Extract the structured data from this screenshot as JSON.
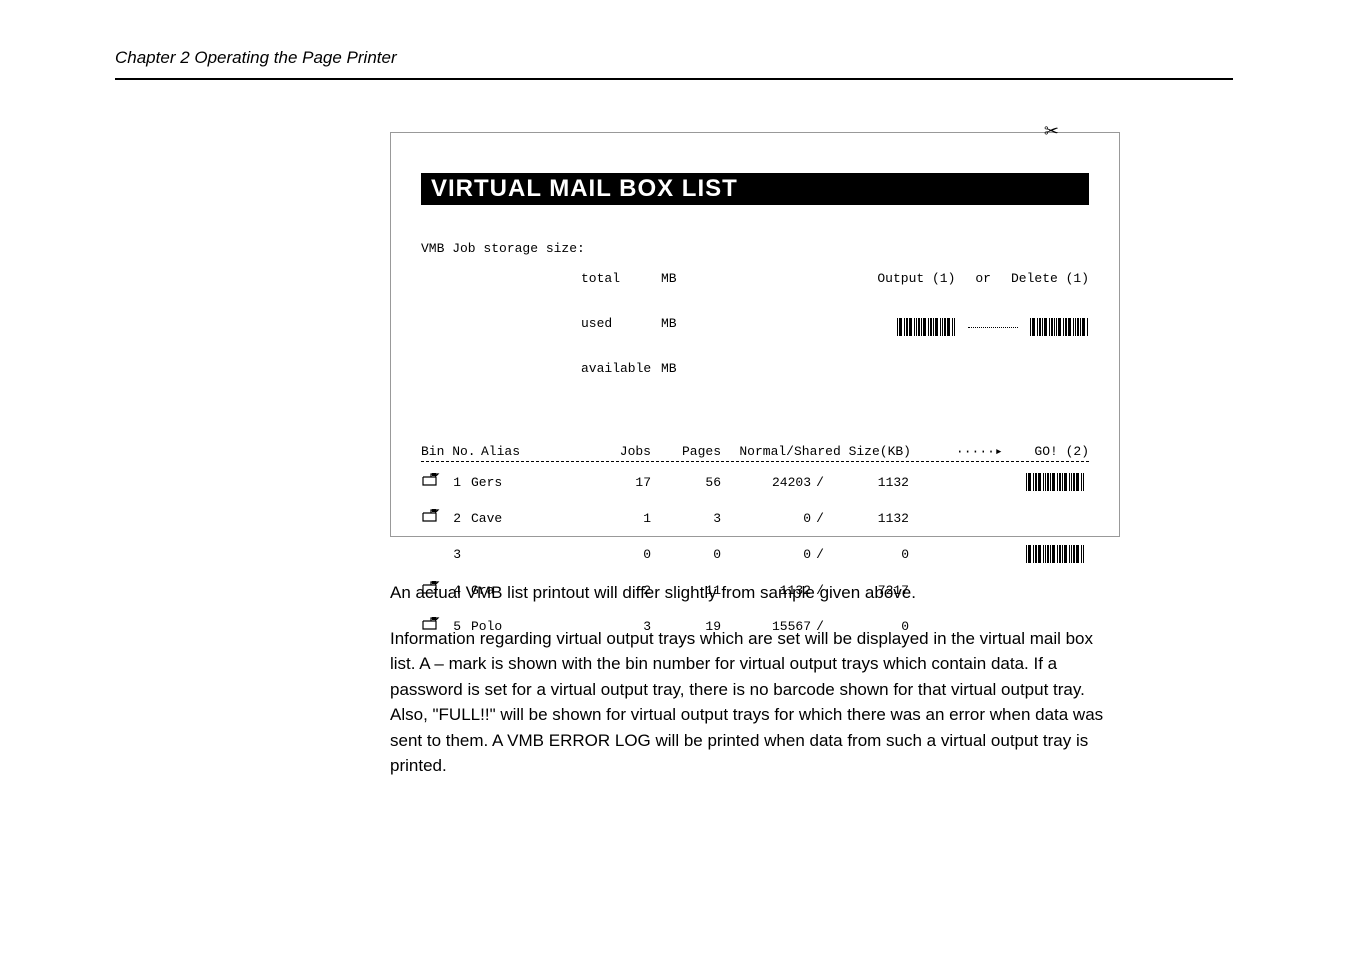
{
  "chapter_header": "Chapter 2  Operating the Page Printer",
  "printout": {
    "title_bar": "VIRTUAL MAIL BOX LIST",
    "storage_label": "VMB Job storage size:",
    "storage_cols": {
      "total_label": "total",
      "used_label": "used",
      "available_label": "available",
      "unit": "MB"
    },
    "output_label": "Output (1)",
    "or_label": "or",
    "delete_label": "Delete (1)",
    "go_label": "GO! (2)",
    "table_headers": {
      "bin_no": "Bin No.",
      "alias": "Alias",
      "jobs": "Jobs",
      "pages": "Pages",
      "normal_shared": "Normal/Shared Size(KB)"
    },
    "rows": [
      {
        "has_icon": true,
        "bin": "1",
        "alias": "Gers",
        "jobs": "17",
        "pages": "56",
        "normal": "24203",
        "shared": "1132",
        "barcode": true
      },
      {
        "has_icon": true,
        "bin": "2",
        "alias": "Cave",
        "jobs": "1",
        "pages": "3",
        "normal": "0",
        "shared": "1132",
        "barcode": false
      },
      {
        "has_icon": false,
        "bin": "3",
        "alias": "",
        "jobs": "0",
        "pages": "0",
        "normal": "0",
        "shared": "0",
        "barcode": true
      },
      {
        "has_icon": true,
        "bin": "4",
        "alias": "Gra",
        "jobs": "2",
        "pages": "11",
        "normal": "1132",
        "shared": "7217",
        "barcode": false
      },
      {
        "has_icon": true,
        "bin": "5",
        "alias": "Polo",
        "jobs": "3",
        "pages": "19",
        "normal": "15567",
        "shared": "0",
        "barcode": false
      }
    ]
  },
  "body": {
    "p1": "An actual VMB list printout will differ slightly from sample given above.",
    "p2": "Information regarding virtual output trays which are set will be displayed in the virtual mail box list. A – mark is shown with the bin number for virtual output trays which contain data. If a password is set for a virtual output tray, there is no barcode shown for that virtual output tray. Also, \"FULL!!\" will be shown for virtual output trays for which there was an error when data was sent to them. A VMB ERROR LOG will be printed when data from such a virtual output tray is printed."
  }
}
